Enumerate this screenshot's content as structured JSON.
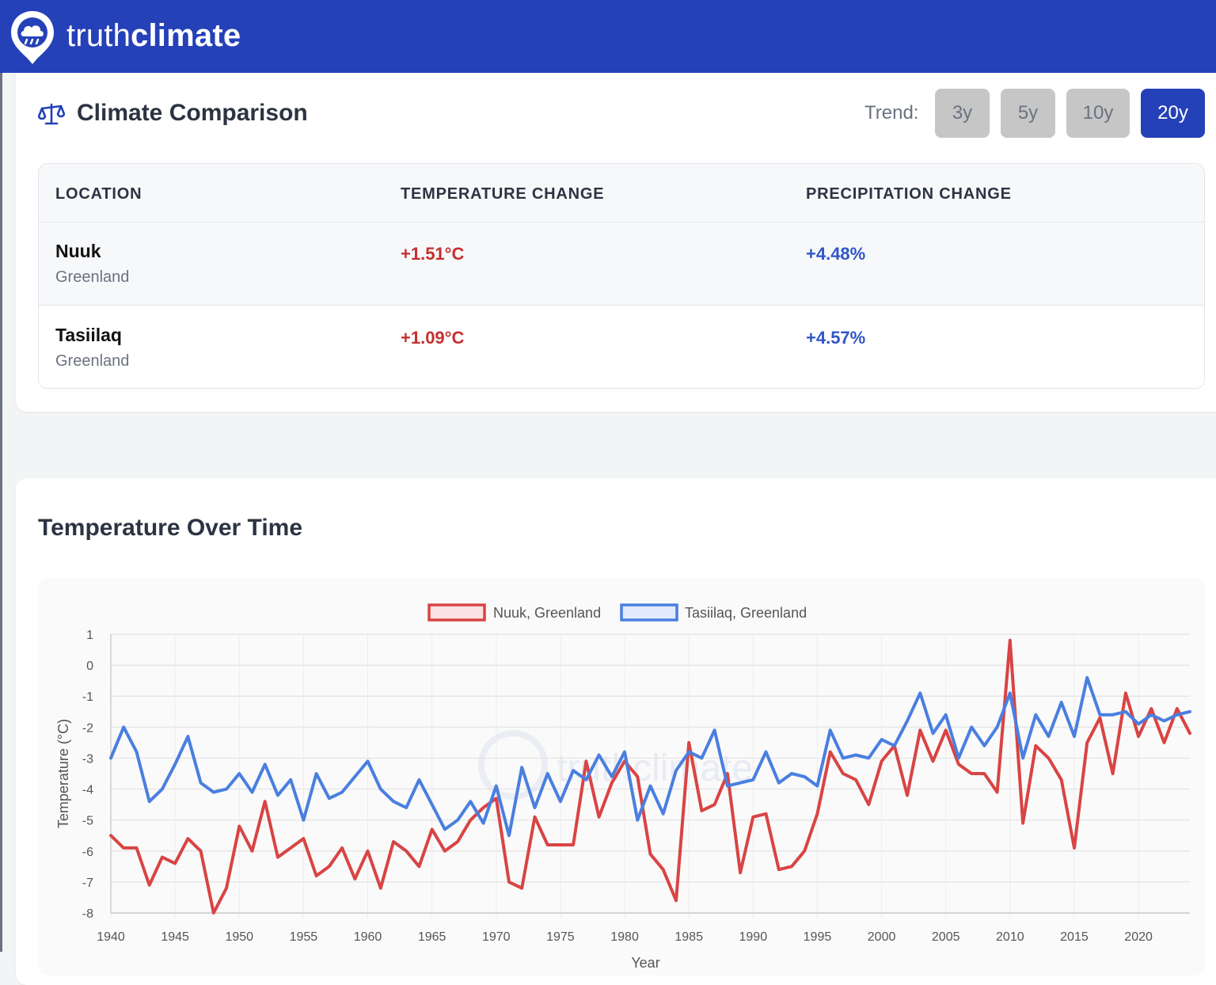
{
  "header": {
    "brand_light": "truth",
    "brand_bold": "climate"
  },
  "comparison": {
    "title": "Climate Comparison",
    "trend_label": "Trend:",
    "trend_options": [
      "3y",
      "5y",
      "10y",
      "20y"
    ],
    "active_trend": "20y",
    "columns": [
      "LOCATION",
      "TEMPERATURE CHANGE",
      "PRECIPITATION CHANGE"
    ],
    "rows": [
      {
        "name": "Nuuk",
        "country": "Greenland",
        "temperature_change": "+1.51°C",
        "precipitation_change": "+4.48%"
      },
      {
        "name": "Tasiilaq",
        "country": "Greenland",
        "temperature_change": "+1.09°C",
        "precipitation_change": "+4.57%"
      }
    ]
  },
  "colors": {
    "brand_blue": "#2541b8",
    "temperature_red": "#c62f2f",
    "precipitation_blue": "#2f56c6",
    "series_nuuk": "#d94444",
    "series_tasiilaq": "#4a7fe0"
  },
  "chart_section": {
    "title": "Temperature Over Time"
  },
  "chart_data": {
    "type": "line",
    "xlabel": "Year",
    "ylabel": "Temperature (°C)",
    "xlim": [
      1940,
      2024
    ],
    "ylim": [
      -8,
      1
    ],
    "x_ticks": [
      "1940",
      "1945",
      "1950",
      "1955",
      "1960",
      "1965",
      "1970",
      "1975",
      "1980",
      "1985",
      "1990",
      "1995",
      "2000",
      "2005",
      "2010",
      "2015",
      "2020"
    ],
    "y_ticks": [
      "1",
      "0",
      "-1",
      "-2",
      "-3",
      "-4",
      "-5",
      "-6",
      "-7",
      "-8"
    ],
    "grid": true,
    "legend_position": "top-center",
    "watermark": "truthclimate",
    "x": [
      1940,
      1941,
      1942,
      1943,
      1944,
      1945,
      1946,
      1947,
      1948,
      1949,
      1950,
      1951,
      1952,
      1953,
      1954,
      1955,
      1956,
      1957,
      1958,
      1959,
      1960,
      1961,
      1962,
      1963,
      1964,
      1965,
      1966,
      1967,
      1968,
      1969,
      1970,
      1971,
      1972,
      1973,
      1974,
      1975,
      1976,
      1977,
      1978,
      1979,
      1980,
      1981,
      1982,
      1983,
      1984,
      1985,
      1986,
      1987,
      1988,
      1989,
      1990,
      1991,
      1992,
      1993,
      1994,
      1995,
      1996,
      1997,
      1998,
      1999,
      2000,
      2001,
      2002,
      2003,
      2004,
      2005,
      2006,
      2007,
      2008,
      2009,
      2010,
      2011,
      2012,
      2013,
      2014,
      2015,
      2016,
      2017,
      2018,
      2019,
      2020,
      2021,
      2022,
      2023,
      2024
    ],
    "series": [
      {
        "name": "Nuuk, Greenland",
        "values": [
          -5.5,
          -5.9,
          -5.9,
          -7.1,
          -6.2,
          -6.4,
          -5.6,
          -6.0,
          -8.0,
          -7.2,
          -5.2,
          -6.0,
          -4.4,
          -6.2,
          -5.9,
          -5.6,
          -6.8,
          -6.5,
          -5.9,
          -6.9,
          -6.0,
          -7.2,
          -5.7,
          -6.0,
          -6.5,
          -5.3,
          -6.0,
          -5.7,
          -5.0,
          -4.6,
          -4.3,
          -7.0,
          -7.2,
          -4.9,
          -5.8,
          -5.8,
          -5.8,
          -3.1,
          -4.9,
          -3.8,
          -3.1,
          -3.6,
          -6.1,
          -6.6,
          -7.6,
          -2.5,
          -4.7,
          -4.5,
          -3.5,
          -6.7,
          -4.9,
          -4.8,
          -6.6,
          -6.5,
          -6.0,
          -4.8,
          -2.8,
          -3.5,
          -3.7,
          -4.5,
          -3.1,
          -2.6,
          -4.2,
          -2.1,
          -3.1,
          -2.1,
          -3.2,
          -3.5,
          -3.5,
          -4.1,
          0.8,
          -5.1,
          -2.6,
          -3.0,
          -3.7,
          -5.9,
          -2.5,
          -1.7,
          -3.5,
          -0.9,
          -2.3,
          -1.4,
          -2.5,
          -1.4,
          -2.2
        ]
      },
      {
        "name": "Tasiilaq, Greenland",
        "values": [
          -3.0,
          -2.0,
          -2.8,
          -4.4,
          -4.0,
          -3.2,
          -2.3,
          -3.8,
          -4.1,
          -4.0,
          -3.5,
          -4.1,
          -3.2,
          -4.2,
          -3.7,
          -5.0,
          -3.5,
          -4.3,
          -4.1,
          -3.6,
          -3.1,
          -4.0,
          -4.4,
          -4.6,
          -3.7,
          -4.5,
          -5.3,
          -5.0,
          -4.4,
          -5.1,
          -3.9,
          -5.5,
          -3.3,
          -4.6,
          -3.5,
          -4.4,
          -3.4,
          -3.7,
          -2.9,
          -3.6,
          -2.8,
          -5.0,
          -3.9,
          -4.8,
          -3.4,
          -2.8,
          -3.0,
          -2.1,
          -3.9,
          -3.8,
          -3.7,
          -2.8,
          -3.8,
          -3.5,
          -3.6,
          -3.9,
          -2.1,
          -3.0,
          -2.9,
          -3.0,
          -2.4,
          -2.6,
          -1.8,
          -0.9,
          -2.2,
          -1.6,
          -3.0,
          -2.0,
          -2.6,
          -2.0,
          -0.9,
          -3.0,
          -1.6,
          -2.3,
          -1.2,
          -2.3,
          -0.4,
          -1.6,
          -1.6,
          -1.5,
          -1.9,
          -1.6,
          -1.8,
          -1.6,
          -1.5
        ]
      }
    ]
  }
}
